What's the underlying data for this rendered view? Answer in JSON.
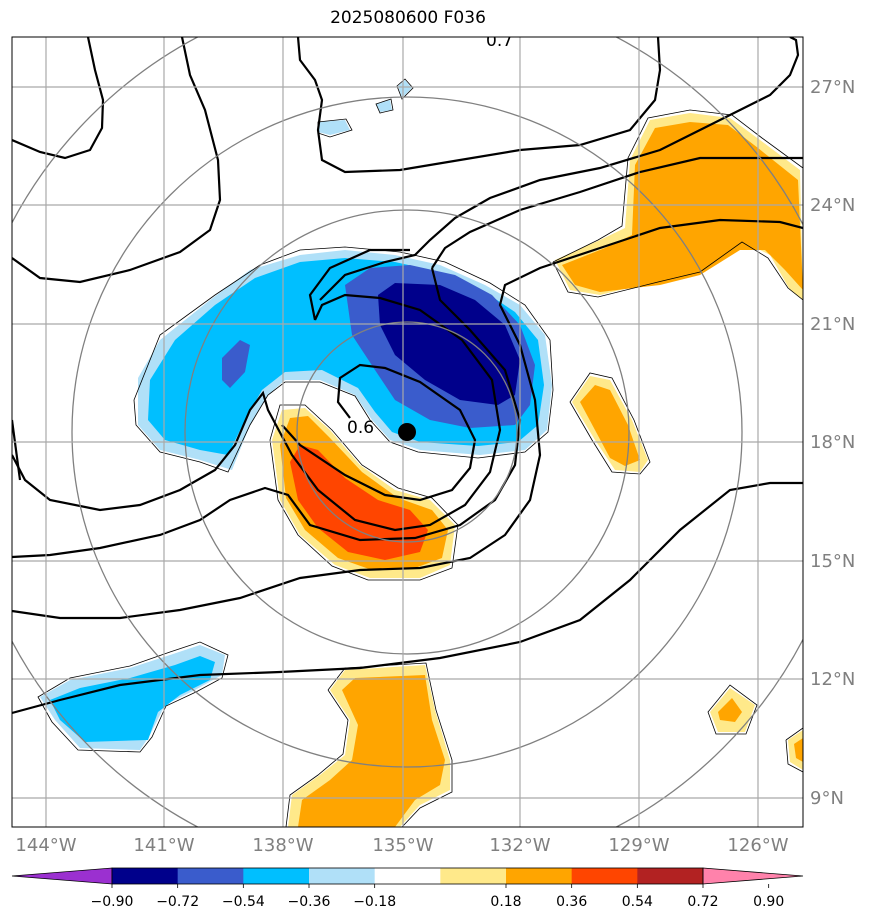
{
  "title": "2025080600 F036",
  "lon_labels": [
    "144°W",
    "141°W",
    "138°W",
    "135°W",
    "132°W",
    "129°W",
    "126°W"
  ],
  "lat_labels": [
    "27°N",
    "24°N",
    "21°N",
    "18°N",
    "15°N",
    "12°N",
    "9°N"
  ],
  "contour_labels": [
    "0.6",
    "0.7"
  ],
  "colorbar": {
    "ticks": [
      "−0.90",
      "−0.72",
      "−0.54",
      "−0.36",
      "−0.18",
      "0.18",
      "0.36",
      "0.54",
      "0.72",
      "0.90"
    ],
    "colors": [
      "#9b30d0",
      "#00008b",
      "#3a5ccc",
      "#00bfff",
      "#b0e0f8",
      "#ffffff",
      "#ffe98a",
      "#ffa500",
      "#ff4500",
      "#b22222",
      "#ff82ab"
    ]
  },
  "palette": {
    "navy": "#00008b",
    "royal": "#3a5ccc",
    "sky": "#00bfff",
    "pale_blue": "#b0e0f8",
    "pale_yellow": "#ffe98a",
    "orange": "#ffa500",
    "red_orange": "#ff4500",
    "range_rings": "#808080",
    "gridlines": "#a9a9a9"
  },
  "center_marker": "storm-center-dot"
}
